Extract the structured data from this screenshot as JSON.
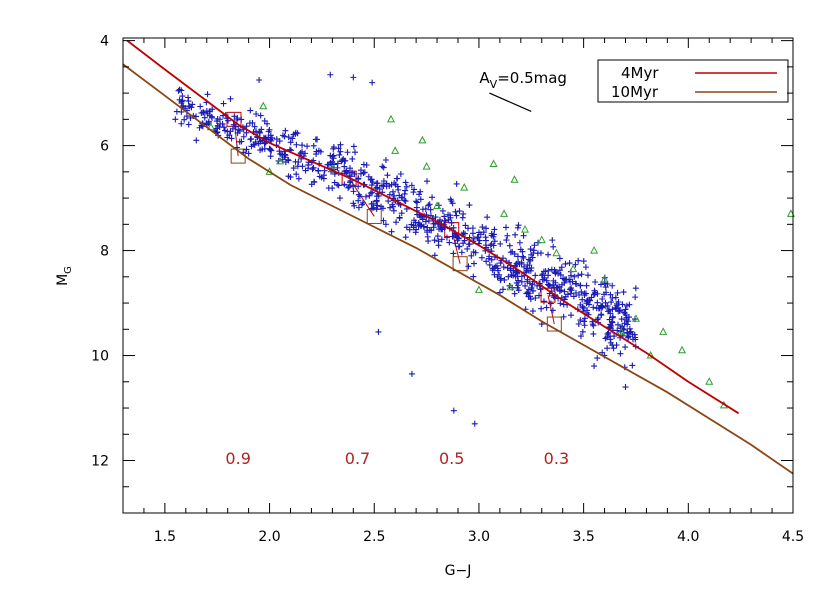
{
  "chart_data": {
    "type": "scatter",
    "xlabel": "G−J",
    "ylabel": "M",
    "ylabel_sub": "G",
    "xlim": [
      1.3,
      4.5
    ],
    "ylim": [
      13,
      3.95
    ],
    "y_inverted": true,
    "xticks": [
      1.5,
      2.0,
      2.5,
      3.0,
      3.5,
      4.0,
      4.5
    ],
    "xtick_labels": [
      "1.5",
      "2.0",
      "2.5",
      "3.0",
      "3.5",
      "4.0",
      "4.5"
    ],
    "yticks": [
      4,
      6,
      8,
      10,
      12
    ],
    "ytick_labels": [
      "4",
      "6",
      "8",
      "10",
      "12"
    ],
    "grid": false,
    "legend_position": "top-right",
    "colors": {
      "crosses": "#1a1ab4",
      "triangles": "#2ca02c",
      "iso4": "#c00000",
      "iso10": "#8b4513",
      "mass_labels": "#b22222",
      "av_vector": "#000000"
    },
    "series": [
      {
        "name": "4Myr",
        "kind": "line",
        "color": "#c00000",
        "x": [
          1.32,
          1.5,
          1.7,
          1.85,
          2.0,
          2.2,
          2.4,
          2.6,
          2.8,
          3.0,
          3.2,
          3.4,
          3.6,
          3.8,
          4.0,
          4.24
        ],
        "y": [
          4.0,
          4.55,
          5.15,
          5.6,
          5.95,
          6.3,
          6.65,
          7.05,
          7.45,
          7.9,
          8.4,
          8.95,
          9.45,
          9.95,
          10.5,
          11.1
        ]
      },
      {
        "name": "10Myr",
        "kind": "line",
        "color": "#8b4513",
        "x": [
          1.3,
          1.5,
          1.7,
          1.9,
          2.1,
          2.3,
          2.5,
          2.7,
          2.9,
          3.1,
          3.3,
          3.5,
          3.7,
          3.9,
          4.1,
          4.3,
          4.5
        ],
        "y": [
          4.45,
          5.05,
          5.65,
          6.25,
          6.75,
          7.15,
          7.55,
          7.95,
          8.4,
          8.85,
          9.35,
          9.8,
          10.25,
          10.7,
          11.2,
          11.7,
          12.25
        ]
      }
    ],
    "crosses_note": "Approximately 900 cluster members (blue '+') scattered along the band between the isochrones, G−J ≈ 1.55–3.75, M_G ≈ 4.6–11.3",
    "crosses_sample": [
      [
        1.95,
        4.75
      ],
      [
        2.29,
        4.65
      ],
      [
        2.4,
        4.7
      ],
      [
        2.49,
        4.8
      ],
      [
        1.78,
        5.2
      ],
      [
        1.55,
        5.5
      ],
      [
        1.65,
        5.9
      ],
      [
        1.9,
        6.15
      ],
      [
        2.1,
        6.6
      ],
      [
        2.4,
        7.1
      ],
      [
        2.7,
        7.6
      ],
      [
        2.95,
        8.3
      ],
      [
        3.1,
        8.8
      ],
      [
        3.3,
        9.4
      ],
      [
        3.55,
        10.2
      ],
      [
        3.7,
        10.6
      ],
      [
        2.68,
        10.35
      ],
      [
        2.88,
        11.05
      ],
      [
        2.98,
        11.3
      ],
      [
        2.52,
        9.55
      ]
    ],
    "triangles": [
      [
        1.72,
        5.65
      ],
      [
        1.97,
        5.25
      ],
      [
        2.0,
        6.5
      ],
      [
        2.05,
        6.3
      ],
      [
        2.3,
        6.45
      ],
      [
        2.58,
        5.5
      ],
      [
        2.6,
        6.1
      ],
      [
        2.73,
        5.9
      ],
      [
        2.75,
        6.4
      ],
      [
        2.8,
        7.15
      ],
      [
        2.93,
        6.8
      ],
      [
        3.07,
        6.35
      ],
      [
        3.12,
        7.3
      ],
      [
        3.17,
        6.65
      ],
      [
        3.22,
        7.6
      ],
      [
        3.3,
        7.8
      ],
      [
        3.37,
        8.05
      ],
      [
        3.45,
        8.35
      ],
      [
        3.55,
        8.0
      ],
      [
        3.6,
        8.55
      ],
      [
        3.68,
        9.55
      ],
      [
        3.75,
        9.3
      ],
      [
        3.82,
        10.0
      ],
      [
        3.88,
        9.55
      ],
      [
        3.97,
        9.9
      ],
      [
        4.1,
        10.5
      ],
      [
        4.17,
        10.95
      ],
      [
        4.49,
        7.3
      ],
      [
        3.15,
        8.7
      ],
      [
        3.0,
        8.75
      ]
    ],
    "mass_boxes": [
      {
        "x": 1.83,
        "y": 5.5,
        "iso": "4Myr"
      },
      {
        "x": 1.85,
        "y": 6.2,
        "iso": "10Myr"
      },
      {
        "x": 2.38,
        "y": 6.62,
        "iso": "4Myr"
      },
      {
        "x": 2.5,
        "y": 7.35,
        "iso": "10Myr"
      },
      {
        "x": 2.87,
        "y": 7.6,
        "iso": "4Myr"
      },
      {
        "x": 2.91,
        "y": 8.25,
        "iso": "10Myr"
      },
      {
        "x": 3.33,
        "y": 8.85,
        "iso": "4Myr"
      },
      {
        "x": 3.36,
        "y": 9.4,
        "iso": "10Myr"
      }
    ],
    "mass_labels": [
      {
        "text": "0.9",
        "x": 1.85,
        "y": 11.95
      },
      {
        "text": "0.7",
        "x": 2.42,
        "y": 11.95
      },
      {
        "text": "0.5",
        "x": 2.87,
        "y": 11.95
      },
      {
        "text": "0.3",
        "x": 3.37,
        "y": 11.95
      }
    ],
    "av_vector": {
      "label_main": "A",
      "label_sub": "V",
      "label_rest": "=0.5mag",
      "x1": 3.05,
      "y1": 5.0,
      "x2": 3.25,
      "y2": 5.35
    },
    "legend": [
      {
        "label": "4Myr",
        "color": "#c00000"
      },
      {
        "label": "10Myr",
        "color": "#8b4513"
      }
    ]
  }
}
